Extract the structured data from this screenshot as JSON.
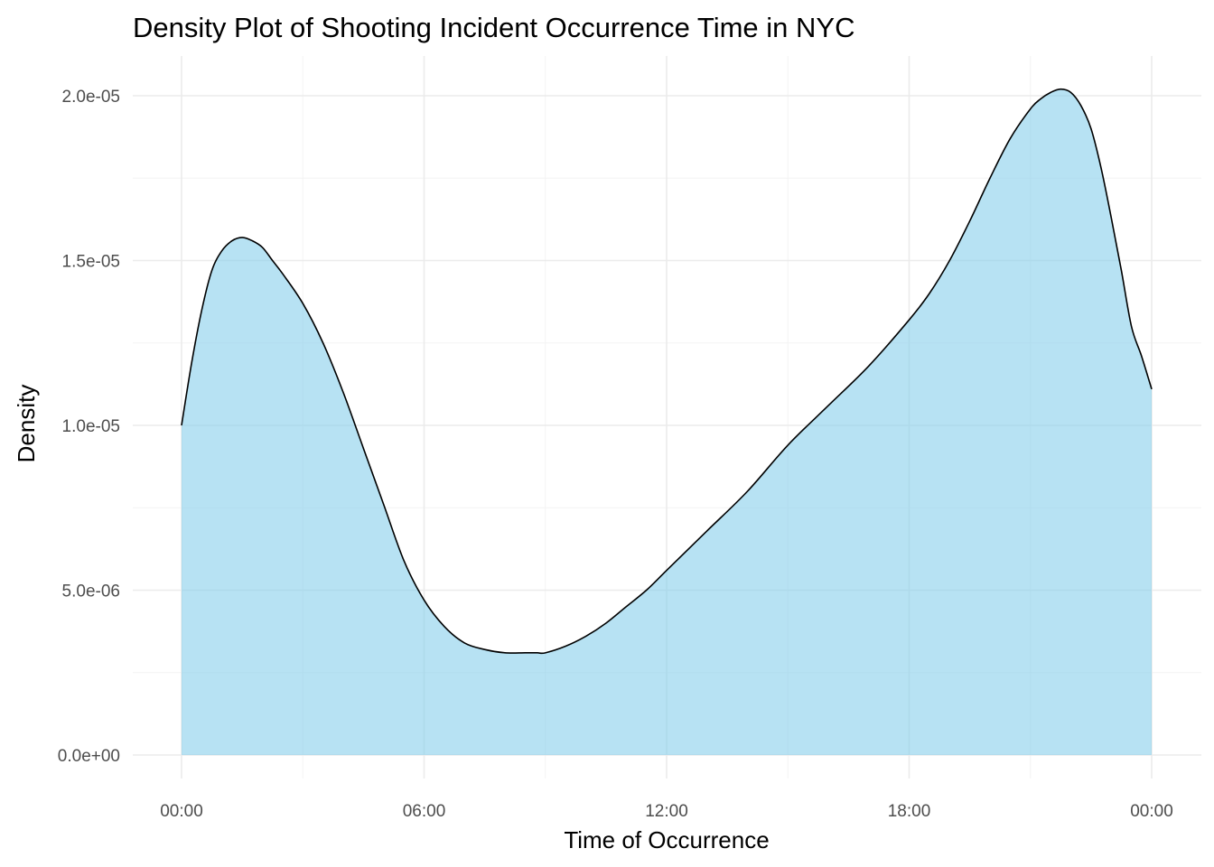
{
  "chart_data": {
    "type": "area",
    "title": "Density Plot of Shooting Incident Occurrence Time in NYC",
    "xlabel": "Time of Occurrence",
    "ylabel": "Density",
    "x_tick_labels": [
      "00:00",
      "06:00",
      "12:00",
      "18:00",
      "00:00"
    ],
    "y_tick_labels": [
      "0.0e+00",
      "5.0e-06",
      "1.0e-05",
      "1.5e-05",
      "2.0e-05"
    ],
    "x_unit": "hours",
    "xlim": [
      0,
      24
    ],
    "ylim": [
      0,
      2e-05
    ],
    "grid": true,
    "fill_color": "#87ceeb",
    "fill_opacity": 0.6,
    "line_color": "#000000",
    "series": [
      {
        "x": [
          0,
          0.25,
          0.5,
          0.75,
          1.0,
          1.25,
          1.5,
          1.75,
          2.0,
          2.25,
          2.5,
          3.0,
          3.5,
          4.0,
          4.5,
          5.0,
          5.5,
          6.0,
          6.5,
          7.0,
          7.5,
          8.0,
          8.5,
          8.8,
          9.0,
          9.5,
          10.0,
          10.5,
          11.0,
          11.5,
          12.0,
          13.0,
          14.0,
          15.0,
          16.0,
          17.0,
          18.0,
          18.5,
          19.0,
          19.5,
          20.0,
          20.5,
          21.0,
          21.25,
          21.5,
          21.75,
          22.0,
          22.25,
          22.5,
          22.75,
          23.0,
          23.25,
          23.5,
          23.75,
          24.0
        ],
        "y": [
          1e-05,
          1.19e-05,
          1.35e-05,
          1.47e-05,
          1.53e-05,
          1.56e-05,
          1.57e-05,
          1.56e-05,
          1.54e-05,
          1.5e-05,
          1.46e-05,
          1.37e-05,
          1.25e-05,
          1.1e-05,
          9.3e-06,
          7.6e-06,
          5.9e-06,
          4.7e-06,
          3.9e-06,
          3.4e-06,
          3.2e-06,
          3.1e-06,
          3.1e-06,
          3.1e-06,
          3.1e-06,
          3.3e-06,
          3.6e-06,
          4e-06,
          4.5e-06,
          5e-06,
          5.6e-06,
          6.8e-06,
          8e-06,
          9.4e-06,
          1.06e-05,
          1.18e-05,
          1.32e-05,
          1.4e-05,
          1.5e-05,
          1.62e-05,
          1.75e-05,
          1.87e-05,
          1.96e-05,
          1.99e-05,
          2.01e-05,
          2.02e-05,
          2.01e-05,
          1.97e-05,
          1.9e-05,
          1.78e-05,
          1.63e-05,
          1.47e-05,
          1.3e-05,
          1.21e-05,
          1.11e-05
        ]
      }
    ]
  }
}
